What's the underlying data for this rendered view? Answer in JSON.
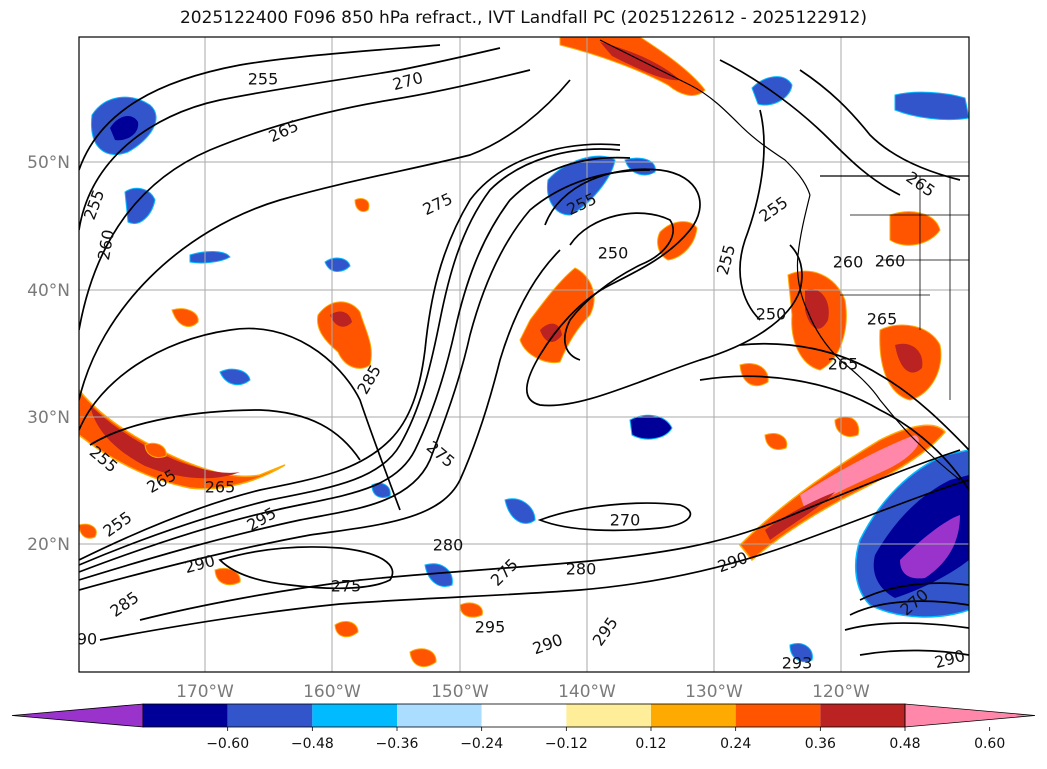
{
  "title": "2025122400 F096 850 hPa refract., IVT Landfall PC (2025122612 - 2025122912)",
  "map": {
    "lat_labels": [
      "50°N",
      "40°N",
      "30°N",
      "20°N"
    ],
    "lon_labels": [
      "170°W",
      "160°W",
      "150°W",
      "140°W",
      "130°W",
      "120°W"
    ],
    "gridlines": true
  },
  "contour_labels": [
    "255",
    "270",
    "265",
    "255",
    "260",
    "275",
    "255",
    "250",
    "255",
    "255",
    "265",
    "260",
    "260",
    "250",
    "265",
    "265",
    "285",
    "255",
    "265",
    "265",
    "275",
    "255",
    "295",
    "290",
    "285",
    "90",
    "270",
    "280",
    "280",
    "275",
    "290",
    "275",
    "295",
    "290",
    "295",
    "293",
    "270",
    "290"
  ],
  "colorbar": {
    "ticks": [
      "−0.60",
      "−0.48",
      "−0.36",
      "−0.24",
      "−0.12",
      "0.12",
      "0.24",
      "0.36",
      "0.48",
      "0.60"
    ],
    "colors": [
      "#9933cc",
      "#000099",
      "#3355cc",
      "#00bbff",
      "#aaddff",
      "#ffffff",
      "#ffee99",
      "#ffaa00",
      "#ff5500",
      "#bb2222",
      "#ff88aa"
    ],
    "extend_low_color": "#9933cc",
    "extend_high_color": "#ff88aa"
  },
  "blob_colors": {
    "blue_dark": "#000099",
    "blue": "#3355cc",
    "cyan": "#00bbff",
    "light": "#aaddff",
    "orange": "#ff5500",
    "orange_light": "#ffaa00",
    "red": "#bb2222",
    "pink": "#ff88aa",
    "purple": "#9933cc"
  }
}
